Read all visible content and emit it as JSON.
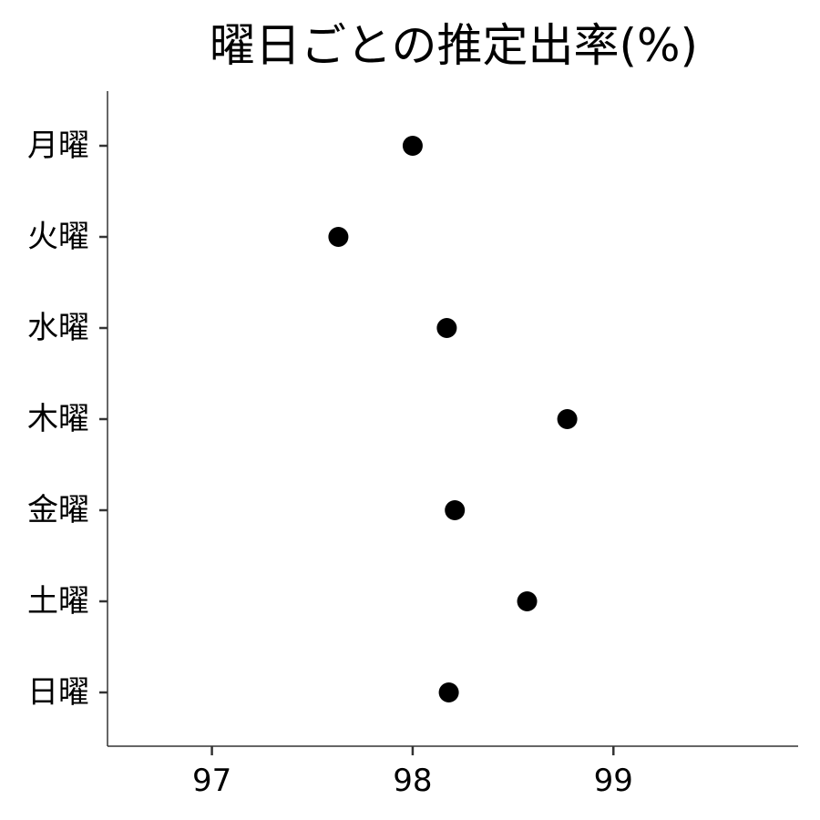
{
  "chart_data": {
    "type": "scatter",
    "title": "曜日ごとの推定出率(%)",
    "xlabel": "",
    "ylabel": "",
    "categories": [
      "月曜",
      "火曜",
      "水曜",
      "木曜",
      "金曜",
      "土曜",
      "日曜"
    ],
    "values": [
      98.0,
      97.63,
      98.17,
      98.77,
      98.21,
      98.57,
      98.18
    ],
    "xlim": [
      96.48,
      99.92
    ],
    "x_ticks": [
      97,
      98,
      99
    ],
    "x_tick_labels": [
      "97",
      "98",
      "99"
    ],
    "grid": false,
    "point_color": "#000000",
    "axis_color": "#333333"
  }
}
